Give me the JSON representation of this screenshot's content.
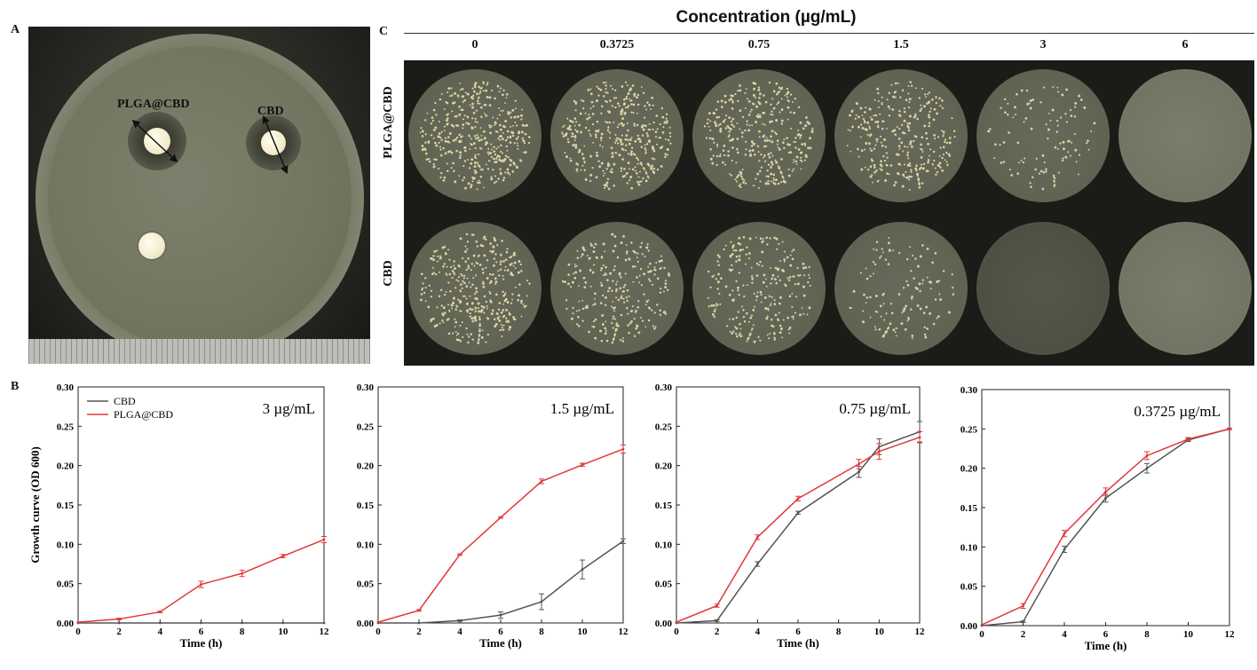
{
  "panels": {
    "a": "A",
    "b": "B",
    "c": "C"
  },
  "panel_a": {
    "labels": [
      "PLGA@CBD",
      "CBD"
    ]
  },
  "panel_c": {
    "title": "Concentration (µg/mL)",
    "concentrations": [
      "0",
      "0.3725",
      "0.75",
      "1.5",
      "3",
      "6"
    ],
    "rows": [
      "PLGA@CBD",
      "CBD"
    ]
  },
  "colors": {
    "CBD": "#555555",
    "PLGA@CBD": "#e0383b"
  },
  "chart_data": [
    {
      "type": "line",
      "annotation": "3 µg/mL",
      "xlabel": "Time (h)",
      "ylabel": "Growth curve (OD 600)",
      "xlim": [
        0,
        12
      ],
      "ylim": [
        0,
        0.3
      ],
      "xticks": [
        0,
        2,
        4,
        6,
        8,
        10,
        12
      ],
      "yticks": [
        "0.00",
        "0.05",
        "0.10",
        "0.15",
        "0.20",
        "0.25",
        "0.30"
      ],
      "legend": "top-left",
      "series": [
        {
          "name": "CBD",
          "x": [
            0,
            2,
            4,
            6,
            8,
            10,
            12
          ],
          "y": [
            0,
            0,
            0,
            0,
            0,
            0,
            0
          ],
          "err": [
            0,
            0,
            0,
            0,
            0,
            0,
            0
          ]
        },
        {
          "name": "PLGA@CBD",
          "x": [
            0,
            2,
            4,
            6,
            8,
            10,
            12
          ],
          "y": [
            0.001,
            0.005,
            0.014,
            0.049,
            0.063,
            0.085,
            0.106
          ],
          "err": [
            0,
            0.001,
            0.001,
            0.004,
            0.004,
            0.002,
            0.004
          ]
        }
      ]
    },
    {
      "type": "line",
      "annotation": "1.5 µg/mL",
      "xlabel": "Time (h)",
      "ylabel": "",
      "xlim": [
        0,
        12
      ],
      "ylim": [
        0,
        0.3
      ],
      "xticks": [
        0,
        2,
        4,
        6,
        8,
        10,
        12
      ],
      "yticks": [
        "0.00",
        "0.05",
        "0.10",
        "0.15",
        "0.20",
        "0.25",
        "0.30"
      ],
      "series": [
        {
          "name": "CBD",
          "x": [
            0,
            2,
            4,
            6,
            8,
            10,
            12
          ],
          "y": [
            0,
            0,
            0.003,
            0.01,
            0.027,
            0.068,
            0.104
          ],
          "err": [
            0,
            0,
            0.001,
            0.004,
            0.01,
            0.012,
            0.003
          ]
        },
        {
          "name": "PLGA@CBD",
          "x": [
            0,
            2,
            4,
            6,
            8,
            10,
            12
          ],
          "y": [
            0.001,
            0.016,
            0.087,
            0.134,
            0.18,
            0.201,
            0.221
          ],
          "err": [
            0,
            0.001,
            0.001,
            0.001,
            0.003,
            0.002,
            0.005
          ]
        }
      ]
    },
    {
      "type": "line",
      "annotation": "0.75 µg/mL",
      "xlabel": "Time (h)",
      "ylabel": "",
      "xlim": [
        0,
        12
      ],
      "ylim": [
        0,
        0.3
      ],
      "xticks": [
        0,
        2,
        4,
        6,
        8,
        10,
        12
      ],
      "yticks": [
        "0.00",
        "0.05",
        "0.10",
        "0.15",
        "0.20",
        "0.25",
        "0.30"
      ],
      "series": [
        {
          "name": "CBD",
          "x": [
            0,
            2,
            4,
            6,
            9,
            10,
            12
          ],
          "y": [
            0,
            0.003,
            0.075,
            0.14,
            0.192,
            0.224,
            0.243
          ],
          "err": [
            0,
            0.001,
            0.003,
            0.002,
            0.007,
            0.01,
            0.013
          ]
        },
        {
          "name": "PLGA@CBD",
          "x": [
            0,
            2,
            4,
            6,
            9,
            10,
            12
          ],
          "y": [
            0.001,
            0.022,
            0.109,
            0.158,
            0.202,
            0.218,
            0.236
          ],
          "err": [
            0,
            0.002,
            0.003,
            0.003,
            0.006,
            0.01,
            0.007
          ]
        }
      ]
    },
    {
      "type": "line",
      "annotation": "0.3725 µg/mL",
      "xlabel": "Time (h)",
      "ylabel": "",
      "xlim": [
        0,
        12
      ],
      "ylim": [
        0,
        0.3
      ],
      "xticks": [
        0,
        2,
        4,
        6,
        8,
        10,
        12
      ],
      "yticks": [
        "0.00",
        "0.05",
        "0.10",
        "0.15",
        "0.20",
        "0.25",
        "0.30"
      ],
      "series": [
        {
          "name": "CBD",
          "x": [
            0,
            2,
            4,
            6,
            8,
            10,
            12
          ],
          "y": [
            0,
            0.005,
            0.097,
            0.162,
            0.2,
            0.236,
            0.25
          ],
          "err": [
            0,
            0.001,
            0.004,
            0.005,
            0.006,
            0.002,
            0.001
          ]
        },
        {
          "name": "PLGA@CBD",
          "x": [
            0,
            2,
            4,
            6,
            8,
            10,
            12
          ],
          "y": [
            0.001,
            0.025,
            0.117,
            0.17,
            0.216,
            0.237,
            0.25
          ],
          "err": [
            0,
            0.003,
            0.004,
            0.005,
            0.005,
            0.002,
            0.001
          ]
        }
      ]
    }
  ]
}
